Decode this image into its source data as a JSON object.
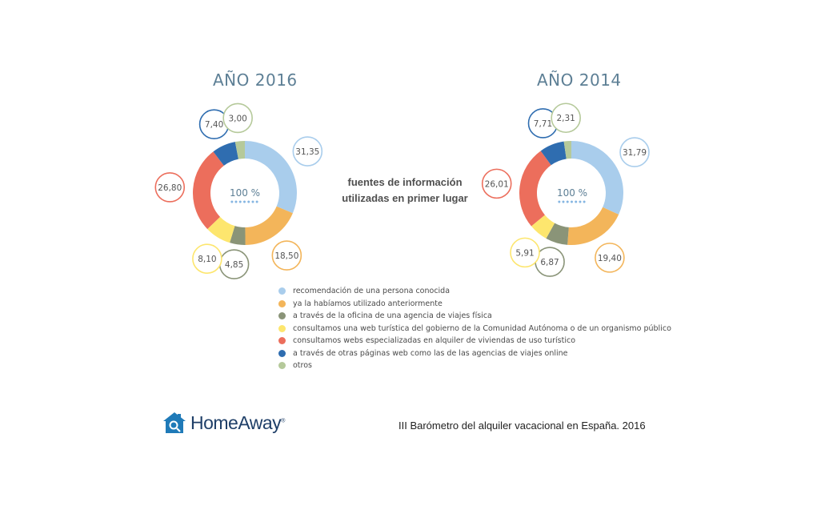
{
  "colors": {
    "recomendacion": "#a9cdec",
    "ya_utilizado": "#f3b55a",
    "oficina_agencia": "#8a9478",
    "web_gobierno": "#fde66e",
    "webs_especializadas": "#ec6e5c",
    "otras_paginas": "#2f6db0",
    "otros": "#b5c99a"
  },
  "subtitle": {
    "line1": "fuentes de información",
    "line2": "utilizadas en primer lugar"
  },
  "chart_data": [
    {
      "type": "pie",
      "title": "AÑO 2016",
      "center_label": "100 %",
      "categories": [
        "recomendación de una persona conocida",
        "ya la habíamos utilizado anteriormente",
        "a través de la oficina de una agencia de viajes física",
        "consultamos una web turística del gobierno de la Comunidad Autónoma o de un organismo público",
        "consultamos webs especializadas en alquiler de viviendas de uso turístico",
        "a través de otras páginas web como las de las agencias de viajes online",
        "otros"
      ],
      "values": [
        31.35,
        18.5,
        4.85,
        8.1,
        26.8,
        7.4,
        3.0
      ],
      "value_labels": [
        "31,35",
        "18,50",
        "4,85",
        "8,10",
        "26,80",
        "7,40",
        "3,00"
      ]
    },
    {
      "type": "pie",
      "title": "AÑO 2014",
      "center_label": "100 %",
      "categories": [
        "recomendación de una persona conocida",
        "ya la habíamos utilizado anteriormente",
        "a través de la oficina de una agencia de viajes física",
        "consultamos una web turística del gobierno de la Comunidad Autónoma o de un organismo público",
        "consultamos webs especializadas en alquiler de viviendas de uso turístico",
        "a través de otras páginas web como las de las agencias de viajes online",
        "otros"
      ],
      "values": [
        31.79,
        19.4,
        6.87,
        5.91,
        26.01,
        7.71,
        2.31
      ],
      "value_labels": [
        "31,79",
        "19,40",
        "6,87",
        "5,91",
        "26,01",
        "7,71",
        "2,31"
      ]
    }
  ],
  "legend": [
    {
      "label": "recomendación de una persona conocida",
      "color": "#a9cdec"
    },
    {
      "label": "ya la habíamos utilizado anteriormente",
      "color": "#f3b55a"
    },
    {
      "label": "a través de la oficina de una agencia de viajes física",
      "color": "#8a9478"
    },
    {
      "label": "consultamos una web turística del gobierno de la Comunidad Autónoma o de un organismo público",
      "color": "#fde66e"
    },
    {
      "label": "consultamos webs especializadas en alquiler de viviendas de uso turístico",
      "color": "#ec6e5c"
    },
    {
      "label": "a través de otras páginas web como las de las agencias de viajes online",
      "color": "#2f6db0"
    },
    {
      "label": "otros",
      "color": "#b5c99a"
    }
  ],
  "footer": {
    "brand": "HomeAway",
    "brand_mark": "®",
    "logo_icon": "house-search-icon",
    "caption": "III Barómetro del alquiler vacacional en España. 2016"
  }
}
